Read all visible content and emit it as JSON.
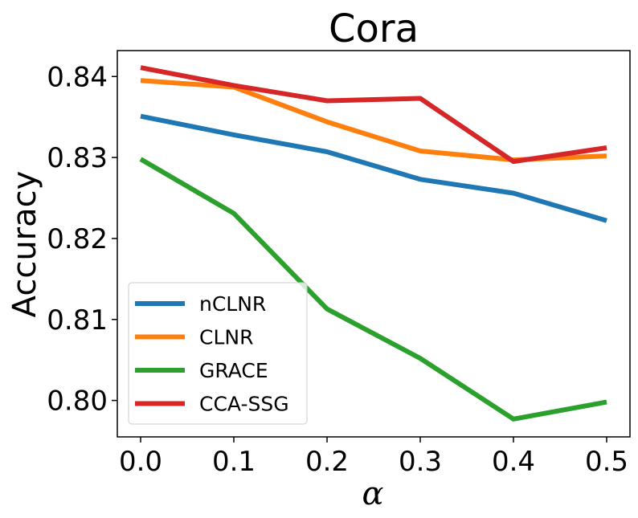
{
  "chart_data": {
    "type": "line",
    "title": "Cora",
    "xlabel": "α",
    "ylabel": "Accuracy",
    "x": [
      0.0,
      0.1,
      0.2,
      0.3,
      0.4,
      0.5
    ],
    "x_tick_labels": [
      "0.0",
      "0.1",
      "0.2",
      "0.3",
      "0.4",
      "0.5"
    ],
    "y_ticks": [
      0.8,
      0.81,
      0.82,
      0.83,
      0.84
    ],
    "y_tick_labels": [
      "0.80",
      "0.81",
      "0.82",
      "0.83",
      "0.84"
    ],
    "xlim": [
      -0.025,
      0.525
    ],
    "ylim": [
      0.7955,
      0.8432
    ],
    "grid": false,
    "legend_position": "lower-left",
    "series": [
      {
        "name": "nCLNR",
        "color": "#1f77b4",
        "values": [
          0.8351,
          0.8328,
          0.8307,
          0.8273,
          0.8256,
          0.8222
        ]
      },
      {
        "name": "CLNR",
        "color": "#ff7f0e",
        "values": [
          0.8395,
          0.8387,
          0.8344,
          0.8308,
          0.8297,
          0.8302
        ]
      },
      {
        "name": "GRACE",
        "color": "#2ca02c",
        "values": [
          0.8298,
          0.8231,
          0.8113,
          0.8052,
          0.7977,
          0.7998
        ]
      },
      {
        "name": "CCA-SSG",
        "color": "#d62728",
        "values": [
          0.8411,
          0.8389,
          0.837,
          0.8373,
          0.8295,
          0.8312
        ]
      }
    ]
  }
}
